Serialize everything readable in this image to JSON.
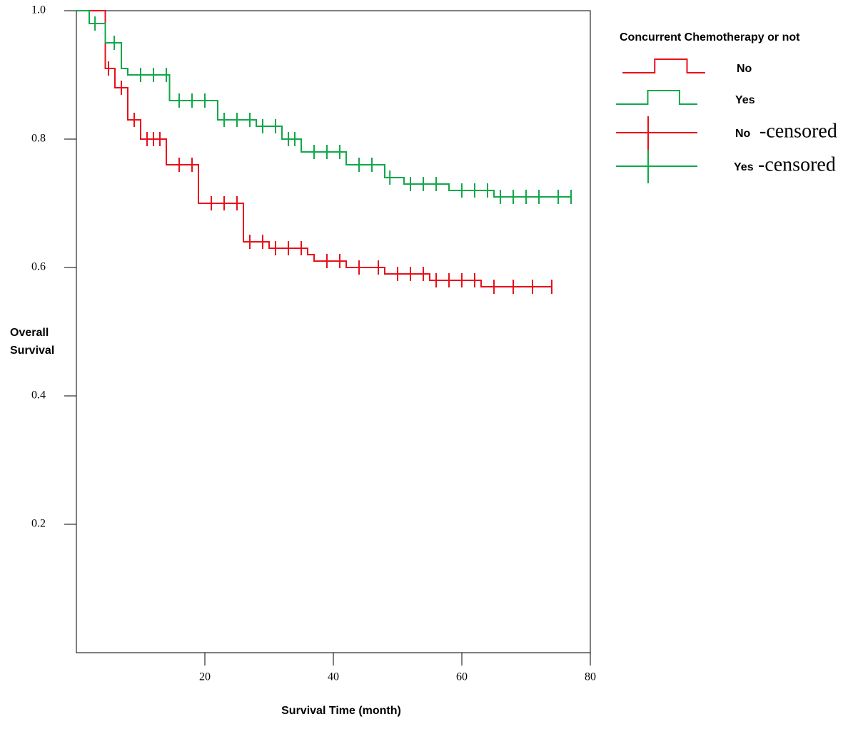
{
  "chart_data": {
    "type": "step",
    "x_label": "Survival Time (month)",
    "y_label": [
      "Overall",
      "Survival"
    ],
    "legend_title": "Concurrent Chemotherapy or not",
    "censored_suffix": "-censored",
    "xlim": [
      0,
      80
    ],
    "xticks": [
      20,
      40,
      60,
      80
    ],
    "ylim": [
      0,
      1
    ],
    "yticks": [
      0.2,
      0.4,
      0.6,
      0.8,
      {
        "value": 1,
        "label": "1.0"
      }
    ],
    "series": [
      {
        "name": "No",
        "color": "#e8101a",
        "x": [
          0,
          4.5,
          6,
          8,
          10,
          14,
          19,
          26,
          30,
          36,
          37,
          42,
          48,
          55,
          63,
          74
        ],
        "values": [
          1,
          0.91,
          0.88,
          0.83,
          0.8,
          0.76,
          0.7,
          0.64,
          0.63,
          0.62,
          0.61,
          0.6,
          0.59,
          0.58,
          0.57,
          0.57
        ],
        "censored_x": [
          5,
          7,
          9,
          11,
          12,
          13,
          16,
          18,
          21,
          23,
          25,
          27,
          29,
          31,
          33,
          35,
          39,
          41,
          44,
          47,
          50,
          52,
          54,
          56,
          58,
          60,
          62,
          65,
          68,
          71,
          74
        ],
        "censored_values": [
          0.91,
          0.88,
          0.83,
          0.8,
          0.8,
          0.8,
          0.76,
          0.76,
          0.7,
          0.7,
          0.7,
          0.64,
          0.64,
          0.63,
          0.63,
          0.63,
          0.61,
          0.61,
          0.6,
          0.6,
          0.59,
          0.59,
          0.59,
          0.58,
          0.58,
          0.58,
          0.58,
          0.57,
          0.57,
          0.57,
          0.57
        ]
      },
      {
        "name": "Yes",
        "color": "#10a84a",
        "x": [
          0,
          2,
          4.5,
          7,
          8,
          14.5,
          22,
          28,
          32,
          35,
          42,
          48,
          51,
          58,
          65,
          77
        ],
        "values": [
          1,
          0.98,
          0.95,
          0.91,
          0.9,
          0.86,
          0.83,
          0.82,
          0.8,
          0.78,
          0.76,
          0.74,
          0.73,
          0.72,
          0.71,
          0.71
        ],
        "censored_x": [
          2.9,
          5.9,
          10,
          12,
          14,
          16,
          18,
          20,
          23,
          25,
          27,
          29,
          31,
          33,
          34,
          37,
          39,
          41,
          44,
          46,
          48.8,
          52,
          54,
          56,
          60,
          62,
          64,
          66,
          68,
          70,
          72,
          75,
          77
        ],
        "censored_values": [
          0.98,
          0.95,
          0.9,
          0.9,
          0.9,
          0.86,
          0.86,
          0.86,
          0.83,
          0.83,
          0.83,
          0.82,
          0.82,
          0.8,
          0.8,
          0.78,
          0.78,
          0.78,
          0.76,
          0.76,
          0.74,
          0.73,
          0.73,
          0.73,
          0.72,
          0.72,
          0.72,
          0.71,
          0.71,
          0.71,
          0.71,
          0.71,
          0.71
        ]
      }
    ]
  }
}
